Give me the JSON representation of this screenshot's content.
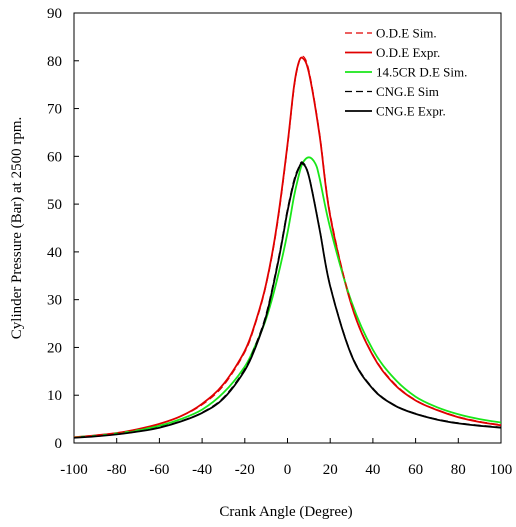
{
  "chart_data": {
    "type": "line",
    "xlabel": "Crank Angle (Degree)",
    "ylabel": "Cylinder Pressure (Bar) at 2500 rpm.",
    "xlim": [
      -100,
      100
    ],
    "ylim": [
      0,
      90
    ],
    "xticks": [
      -100,
      -80,
      -60,
      -40,
      -20,
      0,
      20,
      40,
      60,
      80,
      100
    ],
    "yticks": [
      0,
      10,
      20,
      30,
      40,
      50,
      60,
      70,
      80,
      90
    ],
    "grid": false,
    "legend_position": "top-right",
    "series": [
      {
        "name": "O.D.E Sim.",
        "color": "#e00000",
        "dash": true,
        "x": [
          -100,
          -90,
          -80,
          -70,
          -60,
          -50,
          -40,
          -30,
          -20,
          -15,
          -10,
          -5,
          0,
          3,
          5,
          7,
          10,
          15,
          20,
          30,
          40,
          50,
          60,
          70,
          80,
          90,
          100
        ],
        "y": [
          1.2,
          1.6,
          2.1,
          2.9,
          4.0,
          5.6,
          8.0,
          12.0,
          19.0,
          25.0,
          33.0,
          45.0,
          62.0,
          74.0,
          79.0,
          81.0,
          78.0,
          65.0,
          48.0,
          29.0,
          18.5,
          12.5,
          9.0,
          7.0,
          5.5,
          4.5,
          3.8
        ]
      },
      {
        "name": "O.D.E Expr.",
        "color": "#e00000",
        "dash": false,
        "x": [
          -100,
          -90,
          -80,
          -70,
          -60,
          -50,
          -40,
          -30,
          -20,
          -15,
          -10,
          -5,
          0,
          3,
          5,
          7,
          10,
          15,
          20,
          30,
          40,
          50,
          60,
          70,
          80,
          90,
          100
        ],
        "y": [
          1.2,
          1.6,
          2.1,
          2.9,
          4.0,
          5.6,
          8.2,
          12.3,
          19.3,
          25.3,
          33.3,
          45.5,
          62.5,
          74.5,
          79.3,
          80.6,
          77.5,
          64.5,
          47.5,
          28.8,
          18.3,
          12.3,
          8.9,
          6.9,
          5.4,
          4.4,
          3.7
        ]
      },
      {
        "name": "14.5CR D.E Sim.",
        "color": "#19e619",
        "dash": false,
        "x": [
          -100,
          -90,
          -80,
          -70,
          -60,
          -50,
          -40,
          -30,
          -20,
          -15,
          -10,
          -5,
          0,
          3,
          5,
          7,
          10,
          13,
          15,
          20,
          30,
          40,
          50,
          60,
          70,
          80,
          90,
          100
        ],
        "y": [
          1.2,
          1.5,
          2.0,
          2.7,
          3.6,
          5.0,
          7.0,
          10.5,
          16.0,
          20.5,
          26.0,
          34.0,
          44.0,
          51.5,
          55.5,
          58.5,
          59.8,
          58.5,
          55.5,
          45.0,
          29.5,
          19.5,
          13.5,
          9.7,
          7.5,
          6.0,
          5.0,
          4.3
        ]
      },
      {
        "name": "CNG.E Sim",
        "color": "#000000",
        "dash": true,
        "x": [
          -100,
          -90,
          -80,
          -70,
          -60,
          -50,
          -40,
          -30,
          -20,
          -15,
          -10,
          -5,
          -2,
          0,
          3,
          5,
          7,
          10,
          15,
          20,
          30,
          40,
          50,
          60,
          70,
          80,
          90,
          100
        ],
        "y": [
          1.1,
          1.4,
          1.8,
          2.4,
          3.3,
          4.6,
          6.4,
          9.5,
          15.5,
          20.5,
          27.0,
          37.0,
          44.0,
          49.0,
          55.0,
          57.5,
          58.8,
          56.0,
          45.0,
          33.0,
          18.5,
          11.5,
          8.0,
          6.2,
          5.0,
          4.2,
          3.7,
          3.3
        ]
      },
      {
        "name": "CNG.E Expr.",
        "color": "#000000",
        "dash": false,
        "x": [
          -100,
          -90,
          -80,
          -70,
          -60,
          -50,
          -40,
          -30,
          -20,
          -15,
          -10,
          -5,
          -2,
          0,
          3,
          5,
          7,
          10,
          15,
          20,
          30,
          40,
          50,
          60,
          70,
          80,
          90,
          100
        ],
        "y": [
          1.1,
          1.4,
          1.8,
          2.4,
          3.2,
          4.5,
          6.3,
          9.3,
          15.2,
          20.0,
          26.5,
          36.5,
          43.5,
          48.5,
          54.5,
          57.2,
          58.5,
          55.8,
          44.8,
          32.8,
          18.3,
          11.3,
          7.9,
          6.1,
          4.9,
          4.1,
          3.6,
          3.2
        ]
      }
    ]
  }
}
